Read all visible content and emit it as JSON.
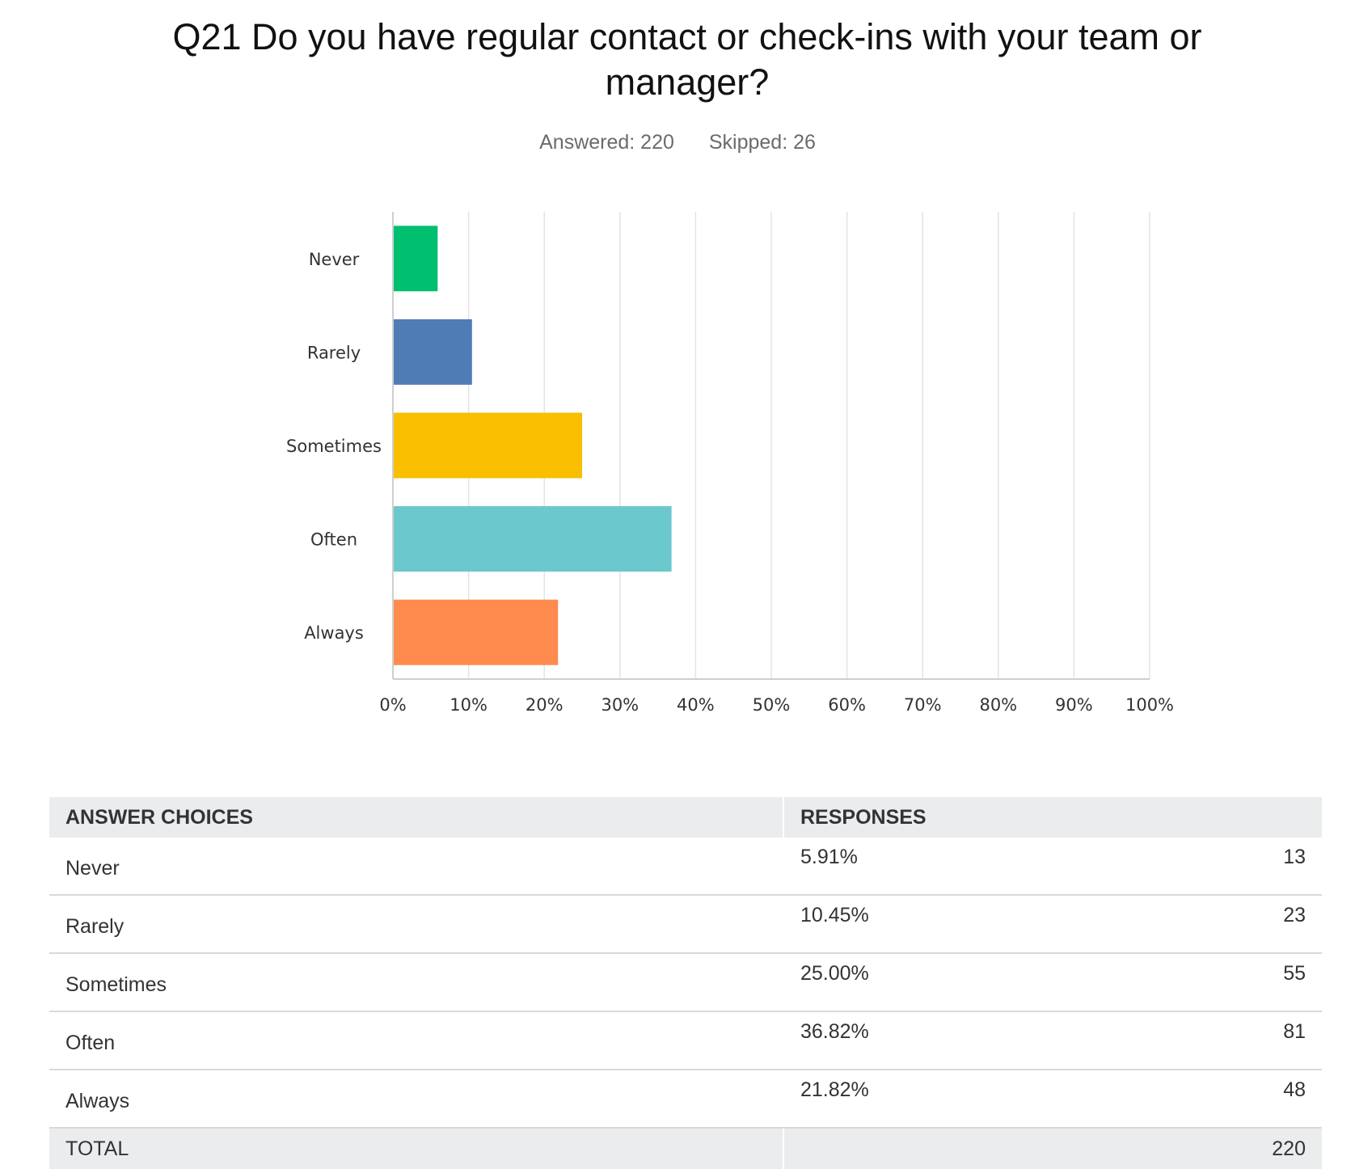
{
  "header": {
    "title": "Q21 Do you have regular contact or check-ins with your team or manager?",
    "answered": "Answered: 220",
    "skipped": "Skipped: 26"
  },
  "chart_data": {
    "type": "bar",
    "orientation": "horizontal",
    "categories": [
      "Never",
      "Rarely",
      "Sometimes",
      "Often",
      "Always"
    ],
    "values": [
      5.91,
      10.45,
      25.0,
      36.82,
      21.82
    ],
    "colors": [
      "#00bf6f",
      "#507cb6",
      "#f9be00",
      "#6bc8cd",
      "#ff8b4f"
    ],
    "xlim": [
      0,
      100
    ],
    "x_ticks": [
      "0%",
      "10%",
      "20%",
      "30%",
      "40%",
      "50%",
      "60%",
      "70%",
      "80%",
      "90%",
      "100%"
    ],
    "grid": true
  },
  "table": {
    "headers": [
      "ANSWER CHOICES",
      "RESPONSES"
    ],
    "rows": [
      {
        "choice": "Never",
        "percent": "5.91%",
        "count": "13"
      },
      {
        "choice": "Rarely",
        "percent": "10.45%",
        "count": "23"
      },
      {
        "choice": "Sometimes",
        "percent": "25.00%",
        "count": "55"
      },
      {
        "choice": "Often",
        "percent": "36.82%",
        "count": "81"
      },
      {
        "choice": "Always",
        "percent": "21.82%",
        "count": "48"
      }
    ],
    "total_label": "TOTAL",
    "total_count": "220"
  }
}
